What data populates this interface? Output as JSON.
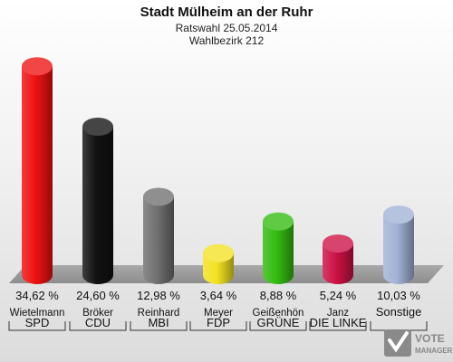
{
  "chart_data": {
    "type": "bar",
    "title": "Stadt Mülheim an der Ruhr",
    "subtitle": "Ratswahl 25.05.2014",
    "subtitle2": "Wahlbezirk 212",
    "ylim": [
      0,
      36
    ],
    "categories": [
      "SPD",
      "CDU",
      "MBI",
      "FDP",
      "GRÜNE",
      "DIE LINKE",
      "Sonstige"
    ],
    "candidates": [
      "Wietelmann",
      "Bröker",
      "Reinhard",
      "Meyer",
      "Geißenhön",
      "Janz",
      ""
    ],
    "values": [
      34.62,
      24.6,
      12.98,
      3.64,
      8.88,
      5.24,
      10.03
    ],
    "value_labels": [
      "34,62 %",
      "24,60 %",
      "12,98 %",
      "3,64 %",
      "8,88 %",
      "5,24 %",
      "10,03 %"
    ],
    "colors": [
      "#ee1111",
      "#111111",
      "#707070",
      "#f2e222",
      "#33bb11",
      "#cc1144",
      "#a2b2d6"
    ]
  },
  "watermark": {
    "line1": "VOTE",
    "line2": "MANAGER"
  }
}
